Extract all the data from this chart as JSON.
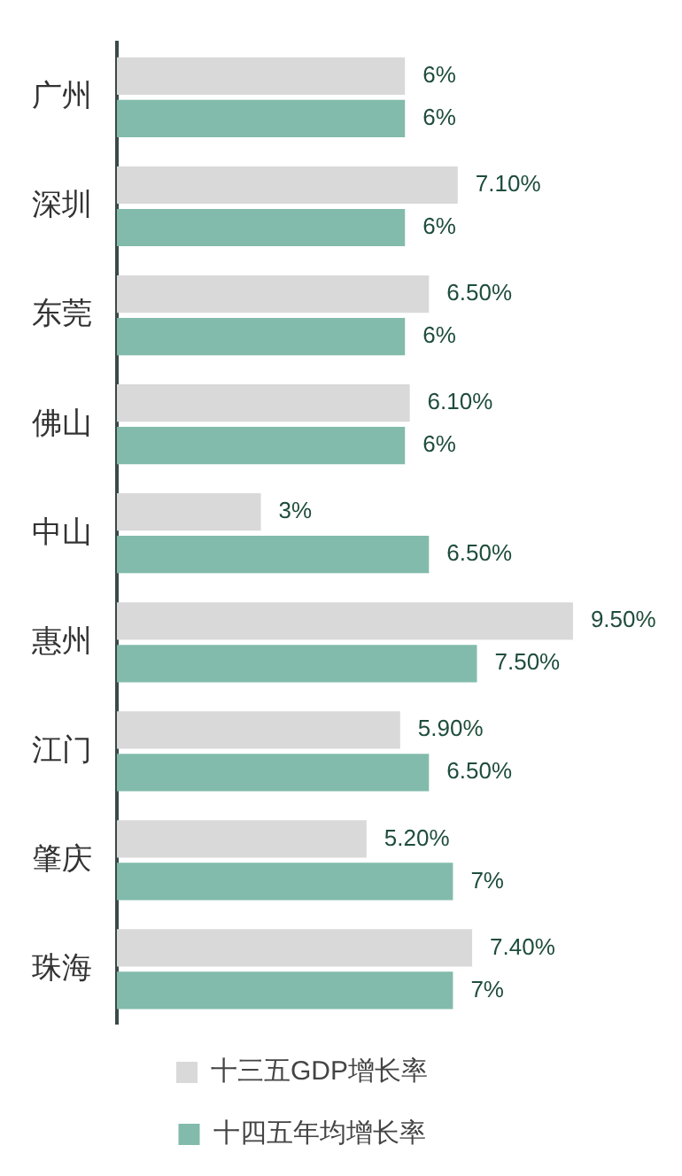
{
  "chart_data": {
    "type": "bar",
    "orientation": "horizontal",
    "categories": [
      "广州",
      "深圳",
      "东莞",
      "佛山",
      "中山",
      "惠州",
      "江门",
      "肇庆",
      "珠海"
    ],
    "series": [
      {
        "name": "十三五GDP增长率",
        "color": "#d9d9d9",
        "values": [
          6,
          7.1,
          6.5,
          6.1,
          3,
          9.5,
          5.9,
          5.2,
          7.4
        ],
        "value_labels": [
          "6%",
          "7.10%",
          "6.50%",
          "6.10%",
          "3%",
          "9.50%",
          "5.90%",
          "5.20%",
          "7.40%"
        ]
      },
      {
        "name": "十四五年均增长率",
        "color": "#82bbab",
        "values": [
          6,
          6,
          6,
          6,
          6.5,
          7.5,
          6.5,
          7,
          7
        ],
        "value_labels": [
          "6%",
          "6%",
          "6%",
          "6%",
          "6.50%",
          "7.50%",
          "6.50%",
          "7%",
          "7%"
        ]
      }
    ],
    "tick_labels": "y",
    "grid": false,
    "legend": "bottom"
  }
}
